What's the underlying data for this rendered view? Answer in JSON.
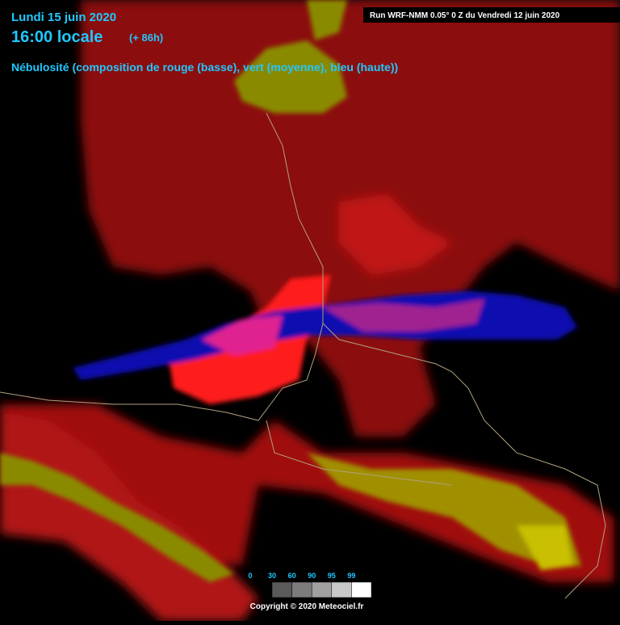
{
  "header": {
    "date": "Lundi 15 juin 2020",
    "time": "16:00 locale",
    "lead": "(+ 86h)",
    "subtitle": "Nébulosité (composition de rouge (basse), vert (moyenne), bleu (haute))",
    "run": "Run WRF-NMM 0.05° 0 Z du Vendredi 12 juin 2020"
  },
  "legend": {
    "labels": [
      0,
      30,
      60,
      90,
      95,
      99
    ],
    "colors": [
      "#5a5a5a",
      "#7c7c7c",
      "#a0a0a0",
      "#c8c8c8",
      "#ffffff"
    ]
  },
  "footer": {
    "copyright": "Copyright © 2020 Meteociel.fr"
  }
}
